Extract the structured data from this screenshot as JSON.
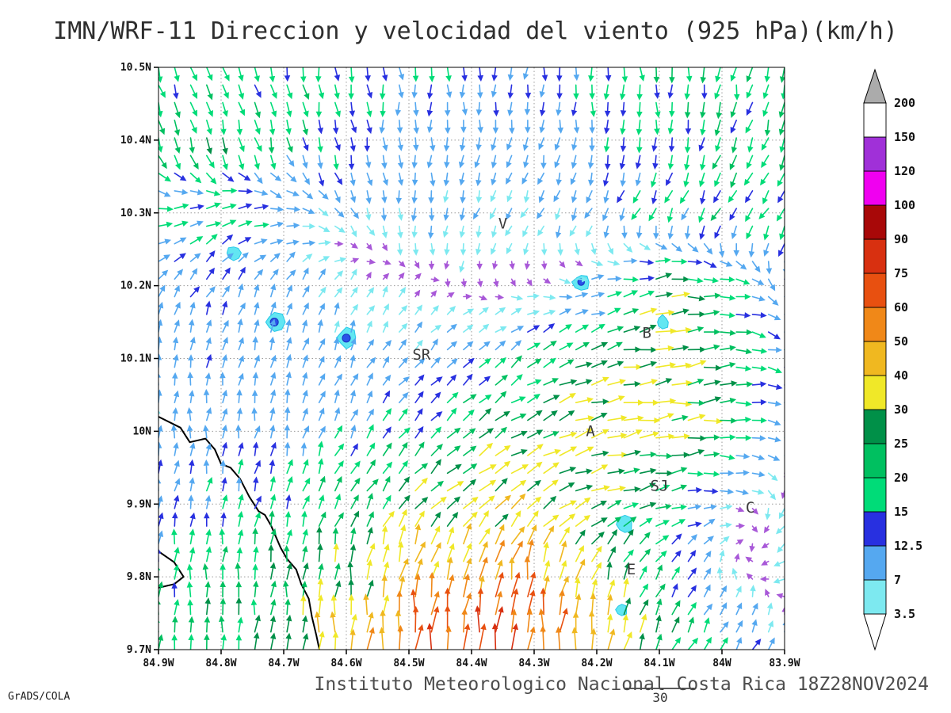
{
  "title": "IMN/WRF-11 Direccion y velocidad del viento (925 hPa)(km/h)",
  "footer": {
    "caption": "Instituto Meteorologico Nacional Costa Rica 18Z28NOV2024",
    "credit": "GrADS/COLA"
  },
  "reference_vector": {
    "label": "30"
  },
  "axes": {
    "lat_ticks": [
      "10.5N",
      "10.4N",
      "10.3N",
      "10.2N",
      "10.1N",
      "10N",
      "9.9N",
      "9.8N",
      "9.7N"
    ],
    "lon_ticks": [
      "84.9W",
      "84.8W",
      "84.7W",
      "84.6W",
      "84.5W",
      "84.4W",
      "84.3W",
      "84.2W",
      "84.1W",
      "84W",
      "83.9W"
    ]
  },
  "chart_data": {
    "type": "vector-field-map",
    "field": "wind direction and speed",
    "level_hPa": 925,
    "units": "km/h",
    "lat_range": [
      9.7,
      10.5
    ],
    "lon_range_W": [
      84.9,
      83.9
    ],
    "grid": "dotted",
    "colorbar": {
      "position": "right",
      "levels": [
        3.5,
        7,
        12.5,
        15,
        20,
        25,
        30,
        40,
        50,
        60,
        75,
        90,
        100,
        120,
        150,
        200
      ],
      "band_colors": [
        "#7DE9F0",
        "#55A8F0",
        "#2830E0",
        "#00DC78",
        "#00C060",
        "#009048",
        "#F0E828",
        "#F0B820",
        "#F08818",
        "#E85010",
        "#D83010",
        "#A80808",
        "#F000F0",
        "#A030D8",
        "#FFFFFF"
      ],
      "underflow_color": "#FFFFFF",
      "overflow_color": "#ABABAB"
    },
    "arrow_underflow_color": "#A858D8",
    "stations": [
      {
        "label": "V",
        "lon": 84.35,
        "lat": 10.285
      },
      {
        "label": "B",
        "lon": 84.12,
        "lat": 10.135
      },
      {
        "label": "SR",
        "lon": 84.48,
        "lat": 10.105
      },
      {
        "label": "A",
        "lon": 84.21,
        "lat": 10.0
      },
      {
        "label": "SJ",
        "lon": 84.1,
        "lat": 9.925
      },
      {
        "label": "C",
        "lon": 83.955,
        "lat": 9.895
      },
      {
        "label": "E",
        "lon": 84.145,
        "lat": 9.81
      }
    ],
    "shaded_spots": [
      {
        "lon": 84.78,
        "lat": 10.245,
        "r": 9,
        "core": false
      },
      {
        "lon": 84.715,
        "lat": 10.15,
        "r": 12,
        "core": true
      },
      {
        "lon": 84.6,
        "lat": 10.128,
        "r": 12,
        "core": true
      },
      {
        "lon": 84.225,
        "lat": 10.205,
        "r": 10,
        "core": true
      },
      {
        "lon": 84.095,
        "lat": 10.15,
        "r": 8,
        "core": false
      },
      {
        "lon": 84.155,
        "lat": 9.872,
        "r": 10,
        "core": false
      },
      {
        "lon": 84.16,
        "lat": 9.755,
        "r": 7,
        "core": false
      }
    ],
    "coastline": [
      [
        [
          84.9,
          10.02
        ],
        [
          84.865,
          10.005
        ],
        [
          84.85,
          9.985
        ],
        [
          84.825,
          9.99
        ],
        [
          84.81,
          9.975
        ],
        [
          84.8,
          9.955
        ],
        [
          84.785,
          9.95
        ],
        [
          84.77,
          9.935
        ],
        [
          84.755,
          9.91
        ],
        [
          84.74,
          9.89
        ],
        [
          84.73,
          9.885
        ],
        [
          84.72,
          9.87
        ],
        [
          84.705,
          9.84
        ],
        [
          84.695,
          9.825
        ],
        [
          84.68,
          9.81
        ],
        [
          84.672,
          9.79
        ],
        [
          84.66,
          9.77
        ],
        [
          84.655,
          9.745
        ],
        [
          84.648,
          9.72
        ],
        [
          84.643,
          9.7
        ]
      ],
      [
        [
          84.9,
          9.835
        ],
        [
          84.875,
          9.82
        ],
        [
          84.86,
          9.8
        ],
        [
          84.875,
          9.79
        ],
        [
          84.9,
          9.785
        ]
      ]
    ],
    "wind_grid": {
      "lons_W": [
        84.9,
        84.8,
        84.7,
        84.6,
        84.5,
        84.4,
        84.3,
        84.2,
        84.1,
        84.0,
        83.9
      ],
      "lats": [
        10.5,
        10.4,
        10.3,
        10.2,
        10.1,
        10.0,
        9.9,
        9.8,
        9.7
      ],
      "u": [
        [
          6,
          5,
          3,
          2,
          1,
          0,
          -1,
          1,
          2,
          -2,
          -4
        ],
        [
          7,
          6,
          4,
          2,
          0,
          -1,
          -2,
          -1,
          -3,
          -5,
          -6
        ],
        [
          14,
          16,
          10,
          4,
          0,
          -2,
          -3,
          -4,
          -6,
          -8,
          -8
        ],
        [
          5,
          6,
          4,
          2,
          1,
          0,
          2,
          8,
          26,
          18,
          4
        ],
        [
          1,
          2,
          2,
          3,
          5,
          8,
          14,
          24,
          34,
          24,
          12
        ],
        [
          0,
          1,
          2,
          5,
          10,
          18,
          26,
          30,
          32,
          20,
          6
        ],
        [
          2,
          3,
          5,
          10,
          16,
          24,
          28,
          26,
          18,
          6,
          -2
        ],
        [
          0,
          1,
          2,
          4,
          8,
          10,
          8,
          10,
          8,
          0,
          -4
        ],
        [
          0,
          0,
          1,
          2,
          4,
          2,
          4,
          8,
          10,
          8,
          4
        ]
      ],
      "v": [
        [
          -16,
          -18,
          -17,
          -15,
          -14,
          -12,
          -10,
          -14,
          -16,
          -18,
          -16
        ],
        [
          -20,
          -20,
          -16,
          -13,
          -11,
          -9,
          -9,
          -12,
          -16,
          -18,
          -16
        ],
        [
          3,
          5,
          0,
          -6,
          -8,
          -6,
          -5,
          -8,
          -12,
          -14,
          -12
        ],
        [
          8,
          10,
          8,
          4,
          2,
          -2,
          -2,
          2,
          4,
          -2,
          -10
        ],
        [
          9,
          10,
          9,
          7,
          6,
          8,
          10,
          8,
          6,
          2,
          -4
        ],
        [
          8,
          9,
          10,
          11,
          12,
          14,
          12,
          8,
          4,
          0,
          -2
        ],
        [
          12,
          14,
          16,
          18,
          20,
          20,
          16,
          10,
          4,
          0,
          -4
        ],
        [
          16,
          18,
          22,
          30,
          40,
          48,
          44,
          30,
          14,
          4,
          -2
        ],
        [
          18,
          22,
          28,
          40,
          55,
          75,
          66,
          40,
          22,
          12,
          8
        ]
      ]
    }
  }
}
